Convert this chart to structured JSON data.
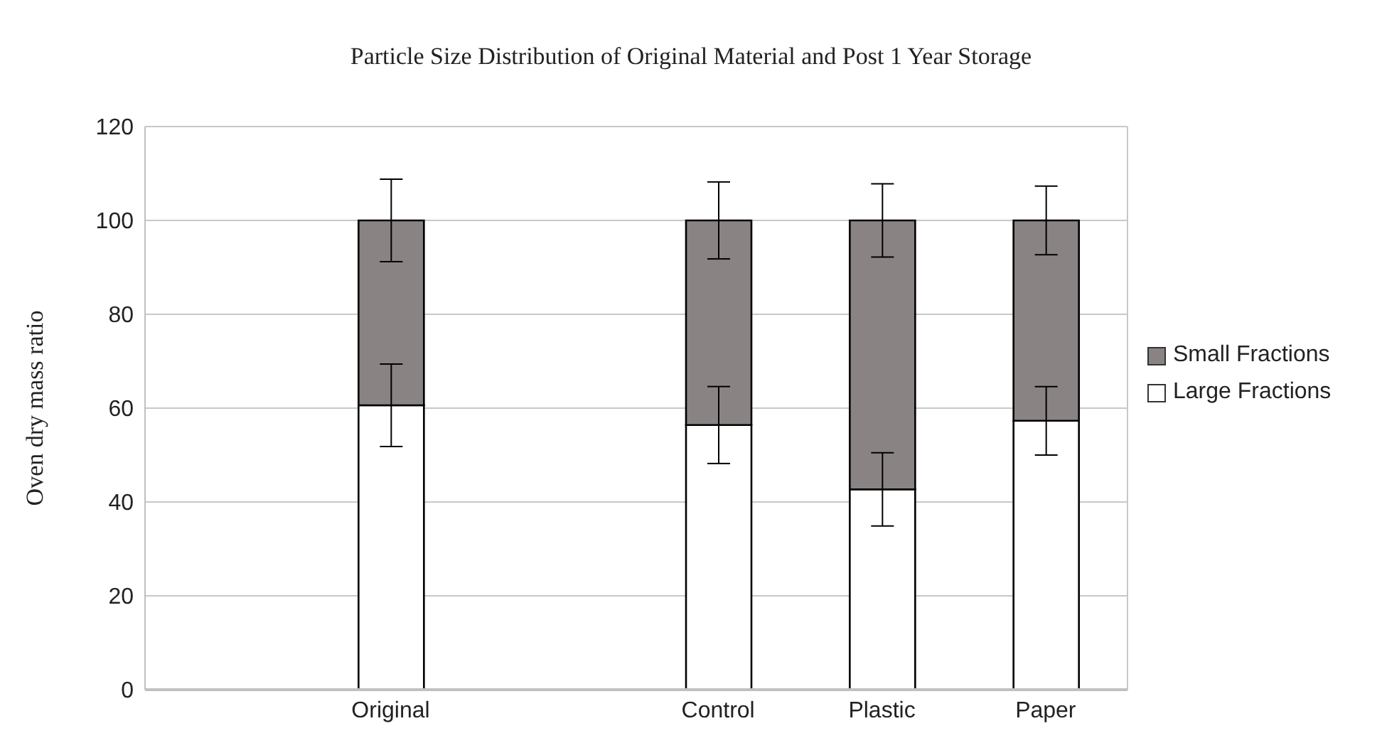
{
  "chart_data": {
    "type": "bar",
    "stacked": true,
    "title": "Particle Size Distribution of Original Material and Post 1 Year Storage",
    "ylabel": "Oven dry mass ratio",
    "categories": [
      null,
      "Original",
      null,
      "Control",
      "Plastic",
      "Paper"
    ],
    "series": [
      {
        "name": "Large Fractions",
        "color": "#ffffff",
        "values": [
          null,
          60.6,
          null,
          56.4,
          42.7,
          57.3
        ],
        "errors": [
          null,
          8.8,
          null,
          8.2,
          7.8,
          7.3
        ]
      },
      {
        "name": "Small Fractions",
        "color": "#898483",
        "values": [
          null,
          39.4,
          null,
          43.6,
          57.3,
          42.7
        ],
        "errors": [
          null,
          8.8,
          null,
          8.2,
          7.8,
          7.3
        ]
      }
    ],
    "ylim": [
      0,
      120
    ],
    "yticks": [
      0,
      20,
      40,
      60,
      80,
      100,
      120
    ],
    "grid": "y",
    "legend": "right"
  }
}
